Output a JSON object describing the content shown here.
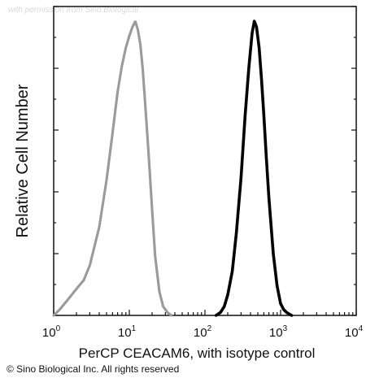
{
  "watermark": "with permission from Sino Biological",
  "copyright": "© Sino Biological Inc. All rights reserved",
  "chart_data": {
    "type": "line",
    "title": "",
    "xlabel": "PerCP CEACAM6, with isotype control",
    "ylabel": "Relative Cell Number",
    "xscale": "log",
    "xlim": [
      1,
      10000
    ],
    "ylim": [
      0,
      1.05
    ],
    "grid": false,
    "legend": "none",
    "x_ticks": [
      {
        "value": 1,
        "base": "10",
        "exp": "0"
      },
      {
        "value": 10,
        "base": "10",
        "exp": "1"
      },
      {
        "value": 100,
        "base": "10",
        "exp": "2"
      },
      {
        "value": 1000,
        "base": "10",
        "exp": "3"
      },
      {
        "value": 10000,
        "base": "10",
        "exp": "4"
      }
    ],
    "series": [
      {
        "color": "#9a9a9a",
        "style": "dotted",
        "x": [
          1.0,
          1.2,
          1.5,
          2.0,
          2.5,
          3.0,
          4.0,
          5.0,
          6.0,
          7.0,
          8.0,
          9.0,
          10.0,
          11.0,
          12.0,
          13.0,
          14.0,
          15.0,
          16.0,
          18.0,
          20.0,
          22.0,
          25.0,
          28.0,
          32.0,
          36.0
        ],
        "y": [
          0.0,
          0.02,
          0.05,
          0.09,
          0.12,
          0.17,
          0.3,
          0.46,
          0.62,
          0.76,
          0.85,
          0.91,
          0.95,
          0.98,
          1.0,
          0.97,
          0.92,
          0.84,
          0.74,
          0.55,
          0.36,
          0.2,
          0.08,
          0.03,
          0.01,
          0.0
        ]
      },
      {
        "color": "#000000",
        "style": "solid",
        "x": [
          140,
          160,
          180,
          200,
          230,
          260,
          300,
          340,
          380,
          420,
          450,
          480,
          520,
          560,
          600,
          650,
          700,
          800,
          900,
          1000,
          1100,
          1200,
          1400
        ],
        "y": [
          0.0,
          0.01,
          0.03,
          0.07,
          0.15,
          0.28,
          0.47,
          0.68,
          0.84,
          0.96,
          1.0,
          0.98,
          0.91,
          0.8,
          0.68,
          0.53,
          0.4,
          0.21,
          0.1,
          0.04,
          0.02,
          0.01,
          0.0
        ]
      }
    ]
  }
}
